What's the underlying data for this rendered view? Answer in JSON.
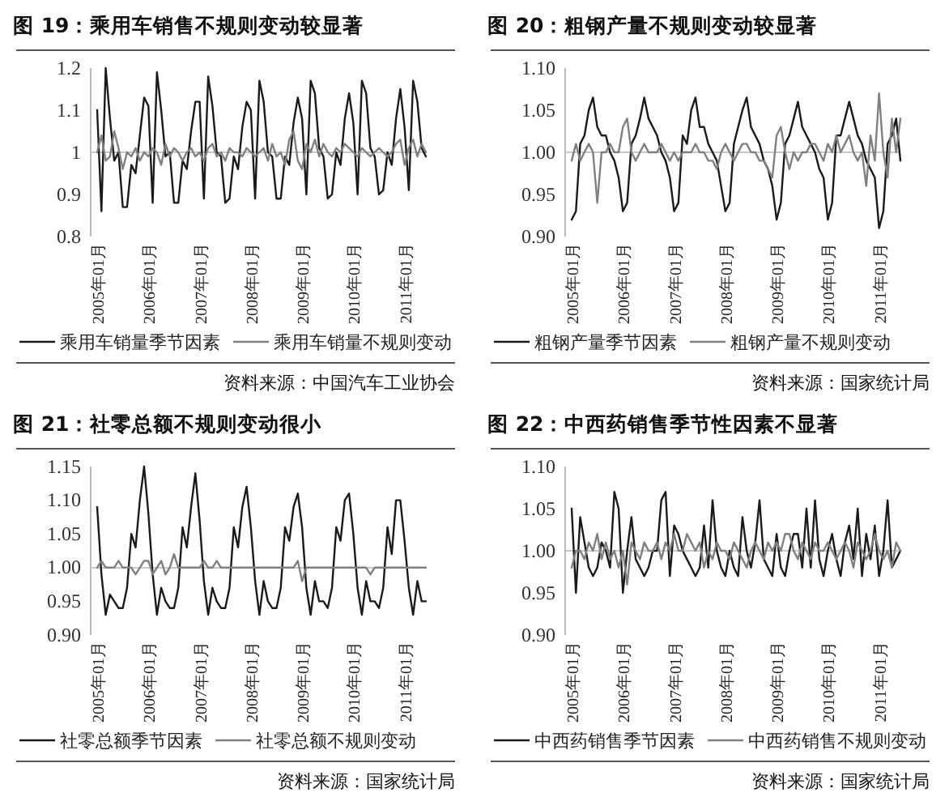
{
  "chart_data": [
    {
      "type": "line",
      "title": "图 19：乘用车销售不规则变动较显著",
      "categories": [
        "2005年01月",
        null,
        null,
        null,
        null,
        null,
        null,
        null,
        null,
        null,
        null,
        null,
        "2006年01月",
        null,
        null,
        null,
        null,
        null,
        null,
        null,
        null,
        null,
        null,
        null,
        "2007年01月",
        null,
        null,
        null,
        null,
        null,
        null,
        null,
        null,
        null,
        null,
        null,
        "2008年01月",
        null,
        null,
        null,
        null,
        null,
        null,
        null,
        null,
        null,
        null,
        null,
        "2009年01月",
        null,
        null,
        null,
        null,
        null,
        null,
        null,
        null,
        null,
        null,
        null,
        "2010年01月",
        null,
        null,
        null,
        null,
        null,
        null,
        null,
        null,
        null,
        null,
        null,
        "2011年01月",
        null,
        null,
        null,
        null,
        null
      ],
      "series": [
        {
          "name": "乘用车销量季节因素",
          "color": "#1a1a1a",
          "values": [
            1.1,
            0.86,
            1.2,
            1.08,
            0.98,
            1.0,
            0.87,
            0.87,
            0.97,
            0.95,
            1.04,
            1.13,
            1.11,
            0.88,
            1.19,
            1.1,
            0.99,
            1.0,
            0.88,
            0.88,
            0.98,
            0.96,
            1.05,
            1.12,
            1.12,
            0.89,
            1.18,
            1.11,
            1.0,
            0.99,
            0.88,
            0.89,
            0.99,
            0.96,
            1.06,
            1.12,
            1.1,
            0.89,
            1.17,
            1.12,
            1.0,
            0.99,
            0.89,
            0.89,
            0.99,
            0.97,
            1.07,
            1.13,
            1.08,
            0.9,
            1.17,
            1.14,
            1.01,
            0.99,
            0.89,
            0.9,
            1.0,
            0.97,
            1.08,
            1.14,
            1.07,
            0.9,
            1.17,
            1.14,
            1.01,
            0.99,
            0.9,
            0.91,
            1.0,
            0.97,
            1.08,
            1.15,
            1.06,
            0.91,
            1.17,
            1.12,
            1.01,
            0.99
          ]
        },
        {
          "name": "乘用车销量不规则变动",
          "color": "#808080",
          "values": [
            1.0,
            1.04,
            0.98,
            0.99,
            1.05,
            1.01,
            0.96,
            1.0,
            0.99,
            1.01,
            0.98,
            1.0,
            0.99,
            1.01,
            1.0,
            0.97,
            1.02,
            0.99,
            1.01,
            1.0,
            0.98,
            1.0,
            1.01,
            0.99,
            1.0,
            0.98,
            1.01,
            1.02,
            0.99,
            1.0,
            0.98,
            1.01,
            1.0,
            1.0,
            0.99,
            1.01,
            1.0,
            0.99,
            1.0,
            1.01,
            0.98,
            1.02,
            0.99,
            1.0,
            0.97,
            1.03,
            1.05,
            0.98,
            0.96,
            1.02,
            1.0,
            1.03,
            0.99,
            1.02,
            1.0,
            0.99,
            1.01,
            1.0,
            1.02,
            1.01,
            1.0,
            0.99,
            1.01,
            1.0,
            0.99,
            1.0,
            1.01,
            1.0,
            0.99,
            1.0,
            1.02,
            1.03,
            0.97,
            1.01,
            1.03,
            0.99,
            1.02,
            1.0
          ]
        }
      ],
      "ylim": [
        0.8,
        1.2
      ],
      "yticks": [
        0.8,
        0.9,
        1,
        1.1,
        1.2
      ],
      "ref_lines": [
        {
          "axis": "y",
          "value": 1,
          "color": "#c8c8c8"
        }
      ],
      "legend": "bottom",
      "annotations": [
        "资料来源：中国汽车工业协会"
      ]
    },
    {
      "type": "line",
      "title": "图 20：粗钢产量不规则变动较显著",
      "categories": [
        "2005年01月",
        null,
        null,
        null,
        null,
        null,
        null,
        null,
        null,
        null,
        null,
        null,
        "2006年01月",
        null,
        null,
        null,
        null,
        null,
        null,
        null,
        null,
        null,
        null,
        null,
        "2007年01月",
        null,
        null,
        null,
        null,
        null,
        null,
        null,
        null,
        null,
        null,
        null,
        "2008年01月",
        null,
        null,
        null,
        null,
        null,
        null,
        null,
        null,
        null,
        null,
        null,
        "2009年01月",
        null,
        null,
        null,
        null,
        null,
        null,
        null,
        null,
        null,
        null,
        null,
        "2010年01月",
        null,
        null,
        null,
        null,
        null,
        null,
        null,
        null,
        null,
        null,
        null,
        "2011年01月",
        null,
        null,
        null,
        null,
        null
      ],
      "series": [
        {
          "name": "粗钢产量季节因素",
          "color": "#1a1a1a",
          "values": [
            0.92,
            0.93,
            1.01,
            1.02,
            1.05,
            1.065,
            1.03,
            1.02,
            1.02,
            1.0,
            0.99,
            0.97,
            0.93,
            0.94,
            1.01,
            1.02,
            1.04,
            1.065,
            1.04,
            1.03,
            1.02,
            1.0,
            0.99,
            0.97,
            0.93,
            0.94,
            1.02,
            1.01,
            1.05,
            1.065,
            1.03,
            1.03,
            1.01,
            1.0,
            0.99,
            0.96,
            0.93,
            0.94,
            1.01,
            1.03,
            1.05,
            1.065,
            1.03,
            1.02,
            1.01,
            0.99,
            0.98,
            0.96,
            0.92,
            0.94,
            1.01,
            1.02,
            1.04,
            1.06,
            1.03,
            1.02,
            1.01,
            1.0,
            0.98,
            0.97,
            0.92,
            0.94,
            1.02,
            1.02,
            1.04,
            1.06,
            1.04,
            1.02,
            1.01,
            0.99,
            0.98,
            0.97,
            0.91,
            0.93,
            1.01,
            1.02,
            1.04,
            0.99
          ]
        },
        {
          "name": "粗钢产量不规则变动",
          "color": "#808080",
          "values": [
            0.99,
            1.01,
            0.99,
            1.0,
            1.01,
            1.0,
            0.94,
            1.0,
            1.0,
            1.01,
            1.0,
            1.0,
            1.03,
            1.04,
            1.0,
            0.99,
            1.0,
            1.01,
            1.0,
            1.0,
            1.0,
            1.01,
            1.0,
            0.99,
            1.0,
            0.99,
            1.0,
            1.0,
            1.0,
            1.01,
            1.0,
            1.0,
            0.99,
            0.99,
            0.98,
            1.0,
            1.01,
            1.0,
            0.99,
            1.0,
            1.01,
            1.01,
            1.0,
            1.0,
            0.99,
            0.99,
            0.98,
            0.97,
            1.02,
            1.03,
            1.0,
            0.98,
            1.0,
            0.99,
            1.0,
            1.0,
            1.01,
            1.01,
            1.0,
            0.99,
            1.01,
            1.0,
            1.02,
            1.0,
            1.01,
            1.02,
            1.0,
            0.99,
            1.0,
            0.96,
            1.02,
            0.99,
            1.07,
            1.0,
            0.97,
            1.04,
            1.0,
            1.04
          ]
        }
      ],
      "ylim": [
        0.9,
        1.1
      ],
      "yticks": [
        {
          "value": 0.9,
          "label": "0.90"
        },
        0.95,
        {
          "value": 1,
          "label": "1.00"
        },
        1.05,
        {
          "value": 1.1,
          "label": "1.10"
        }
      ],
      "ref_lines": [
        {
          "axis": "y",
          "value": 1,
          "color": "#c8c8c8"
        }
      ],
      "legend": "bottom",
      "annotations": [
        "资料来源：国家统计局"
      ]
    },
    {
      "type": "line",
      "title": "图 21：社零总额不规则变动很小",
      "categories": [
        "2005年01月",
        null,
        null,
        null,
        null,
        null,
        null,
        null,
        null,
        null,
        null,
        null,
        "2006年01月",
        null,
        null,
        null,
        null,
        null,
        null,
        null,
        null,
        null,
        null,
        null,
        "2007年01月",
        null,
        null,
        null,
        null,
        null,
        null,
        null,
        null,
        null,
        null,
        null,
        "2008年01月",
        null,
        null,
        null,
        null,
        null,
        null,
        null,
        null,
        null,
        null,
        null,
        "2009年01月",
        null,
        null,
        null,
        null,
        null,
        null,
        null,
        null,
        null,
        null,
        null,
        "2010年01月",
        null,
        null,
        null,
        null,
        null,
        null,
        null,
        null,
        null,
        null,
        null,
        "2011年01月",
        null,
        null,
        null,
        null,
        null
      ],
      "series": [
        {
          "name": "社零总额季节因素",
          "color": "#1a1a1a",
          "values": [
            1.09,
            0.99,
            0.93,
            0.96,
            0.95,
            0.94,
            0.94,
            0.97,
            1.05,
            1.03,
            1.1,
            1.15,
            1.08,
            0.99,
            0.93,
            0.97,
            0.95,
            0.94,
            0.94,
            0.97,
            1.06,
            1.03,
            1.09,
            1.14,
            1.07,
            0.98,
            0.93,
            0.97,
            0.95,
            0.94,
            0.94,
            0.97,
            1.06,
            1.03,
            1.09,
            1.12,
            1.06,
            0.98,
            0.93,
            0.98,
            0.95,
            0.94,
            0.94,
            0.97,
            1.06,
            1.04,
            1.09,
            1.11,
            1.06,
            0.97,
            0.93,
            0.98,
            0.95,
            0.95,
            0.94,
            0.97,
            1.06,
            1.04,
            1.1,
            1.11,
            1.05,
            0.97,
            0.93,
            0.98,
            0.95,
            0.95,
            0.94,
            0.97,
            1.06,
            1.02,
            1.1,
            1.1,
            1.04,
            0.97,
            0.93,
            0.98,
            0.95,
            0.95
          ]
        },
        {
          "name": "社零总额不规则变动",
          "color": "#808080",
          "values": [
            1.0,
            1.01,
            1.0,
            1.0,
            1.0,
            1.01,
            1.0,
            1.0,
            1.0,
            0.99,
            1.0,
            1.01,
            1.01,
            0.99,
            1.0,
            1.01,
            0.99,
            1.0,
            1.02,
            1.0,
            1.0,
            1.0,
            1.0,
            1.0,
            1.0,
            1.01,
            1.0,
            1.0,
            1.01,
            1.0,
            1.0,
            1.0,
            1.0,
            1.0,
            1.0,
            1.0,
            1.0,
            1.0,
            1.0,
            1.0,
            1.0,
            1.0,
            1.0,
            1.0,
            1.0,
            1.0,
            1.0,
            1.01,
            0.98,
            1.0,
            1.0,
            1.0,
            1.0,
            1.0,
            1.0,
            1.0,
            1.0,
            1.0,
            1.0,
            1.0,
            1.0,
            1.0,
            1.0,
            1.0,
            0.99,
            1.0,
            1.0,
            1.0,
            1.0,
            1.0,
            1.0,
            1.0,
            1.0,
            1.0,
            1.0,
            1.0,
            1.0,
            1.0
          ]
        }
      ],
      "ylim": [
        0.9,
        1.15
      ],
      "yticks": [
        {
          "value": 0.9,
          "label": "0.90"
        },
        0.95,
        {
          "value": 1,
          "label": "1.00"
        },
        1.05,
        {
          "value": 1.1,
          "label": "1.10"
        },
        1.15
      ],
      "ref_lines": [
        {
          "axis": "y",
          "value": 1,
          "color": "#c8c8c8"
        }
      ],
      "legend": "bottom",
      "annotations": [
        "资料来源：国家统计局"
      ]
    },
    {
      "type": "line",
      "title": "图 22：中西药销售季节性因素不显著",
      "categories": [
        "2005年01月",
        null,
        null,
        null,
        null,
        null,
        null,
        null,
        null,
        null,
        null,
        null,
        "2006年01月",
        null,
        null,
        null,
        null,
        null,
        null,
        null,
        null,
        null,
        null,
        null,
        "2007年01月",
        null,
        null,
        null,
        null,
        null,
        null,
        null,
        null,
        null,
        null,
        null,
        "2008年01月",
        null,
        null,
        null,
        null,
        null,
        null,
        null,
        null,
        null,
        null,
        null,
        "2009年01月",
        null,
        null,
        null,
        null,
        null,
        null,
        null,
        null,
        null,
        null,
        null,
        "2010年01月",
        null,
        null,
        null,
        null,
        null,
        null,
        null,
        null,
        null,
        null,
        null,
        "2011年01月",
        null,
        null,
        null,
        null,
        null
      ],
      "series": [
        {
          "name": "中西药销售季节因素",
          "color": "#1a1a1a",
          "values": [
            1.05,
            0.95,
            1.04,
            1.01,
            0.98,
            0.97,
            0.98,
            1.01,
            1.0,
            0.98,
            1.07,
            1.05,
            0.95,
            1.0,
            1.04,
            0.99,
            0.98,
            0.97,
            0.98,
            1.0,
            1.0,
            1.06,
            1.07,
            0.97,
            1.03,
            1.02,
            1.0,
            0.99,
            0.98,
            0.97,
            0.98,
            1.03,
            0.98,
            1.06,
            1.0,
            0.98,
            0.97,
            1.0,
            0.98,
            0.97,
            1.04,
            1.0,
            0.98,
            1.01,
            1.06,
            0.99,
            0.98,
            0.97,
            1.02,
            0.98,
            0.97,
            1.0,
            1.02,
            1.02,
            0.98,
            1.05,
            0.98,
            1.06,
            0.99,
            0.97,
            1.0,
            1.02,
            0.99,
            0.97,
            1.01,
            1.03,
            0.99,
            1.05,
            0.97,
            1.02,
            0.99,
            1.03,
            0.97,
            1.0,
            1.06,
            0.98,
            0.99,
            1.0
          ]
        },
        {
          "name": "中西药销售不规则变动",
          "color": "#808080",
          "values": [
            0.98,
            1.0,
            1.0,
            0.99,
            1.01,
            1.0,
            1.02,
            0.99,
            1.01,
            0.99,
            1.0,
            0.98,
            1.0,
            0.96,
            1.01,
            1.0,
            0.99,
            1.01,
            1.0,
            1.0,
            1.01,
            0.99,
            1.01,
            1.0,
            1.02,
            1.0,
            1.0,
            1.02,
            1.01,
            1.0,
            1.01,
            0.98,
            1.0,
            0.99,
            1.01,
            1.0,
            1.0,
            0.99,
            1.01,
            1.0,
            0.99,
            0.98,
            1.0,
            1.01,
            1.0,
            0.99,
            1.01,
            1.0,
            1.01,
            1.0,
            1.02,
            1.02,
            1.0,
            0.99,
            1.01,
            1.0,
            0.99,
            1.01,
            1.0,
            1.0,
            1.01,
            1.0,
            0.99,
            1.0,
            1.01,
            1.0,
            0.98,
            1.01,
            1.0,
            0.99,
            1.0,
            1.02,
            1.0,
            0.99,
            1.0,
            0.98,
            1.01,
            1.0
          ]
        }
      ],
      "ylim": [
        0.9,
        1.1
      ],
      "yticks": [
        {
          "value": 0.9,
          "label": "0.90"
        },
        0.95,
        {
          "value": 1,
          "label": "1.00"
        },
        1.05,
        {
          "value": 1.1,
          "label": "1.10"
        }
      ],
      "ref_lines": [
        {
          "axis": "y",
          "value": 1,
          "color": "#c8c8c8"
        }
      ],
      "legend": "bottom",
      "annotations": [
        "资料来源：国家统计局"
      ]
    }
  ]
}
